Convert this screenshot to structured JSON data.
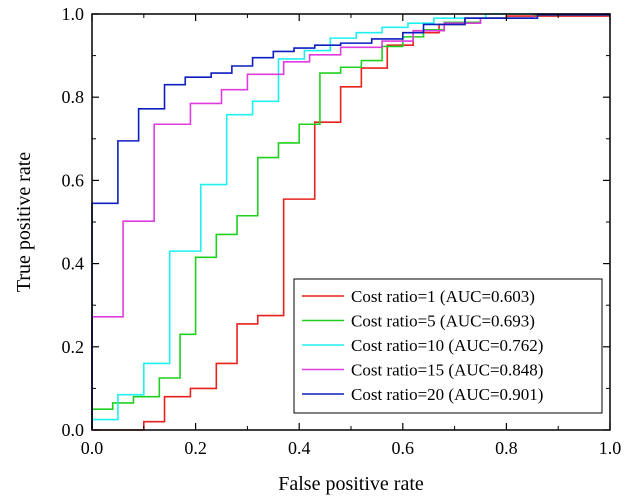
{
  "chart_data": {
    "type": "line",
    "xlabel": "False positive rate",
    "ylabel": "True positive rate",
    "xlim": [
      0.0,
      1.0
    ],
    "ylim": [
      0.0,
      1.0
    ],
    "x_ticks": [
      "0.0",
      "0.2",
      "0.4",
      "0.6",
      "0.8",
      "1.0"
    ],
    "y_ticks": [
      "0.0",
      "0.2",
      "0.4",
      "0.6",
      "0.8",
      "1.0"
    ],
    "grid": false,
    "legend_position": "bottom-right",
    "series": [
      {
        "name": "Cost ratio=1 (AUC=0.603)",
        "color": "#e8211c",
        "points": [
          [
            0,
            0
          ],
          [
            0.1,
            0
          ],
          [
            0.1,
            0.02
          ],
          [
            0.14,
            0.02
          ],
          [
            0.14,
            0.08
          ],
          [
            0.19,
            0.08
          ],
          [
            0.19,
            0.1
          ],
          [
            0.24,
            0.1
          ],
          [
            0.24,
            0.16
          ],
          [
            0.28,
            0.16
          ],
          [
            0.28,
            0.255
          ],
          [
            0.32,
            0.255
          ],
          [
            0.32,
            0.275
          ],
          [
            0.37,
            0.275
          ],
          [
            0.37,
            0.555
          ],
          [
            0.43,
            0.555
          ],
          [
            0.43,
            0.74
          ],
          [
            0.48,
            0.74
          ],
          [
            0.48,
            0.825
          ],
          [
            0.52,
            0.825
          ],
          [
            0.52,
            0.87
          ],
          [
            0.57,
            0.87
          ],
          [
            0.57,
            0.925
          ],
          [
            0.62,
            0.925
          ],
          [
            0.62,
            0.955
          ],
          [
            0.67,
            0.955
          ],
          [
            0.67,
            0.975
          ],
          [
            0.72,
            0.975
          ],
          [
            0.72,
            0.99
          ],
          [
            0.8,
            0.99
          ],
          [
            0.8,
            0.995
          ],
          [
            1.0,
            0.995
          ]
        ]
      },
      {
        "name": "Cost ratio=5 (AUC=0.693)",
        "color": "#20d020",
        "points": [
          [
            0,
            0
          ],
          [
            0,
            0.05
          ],
          [
            0.04,
            0.05
          ],
          [
            0.04,
            0.065
          ],
          [
            0.08,
            0.065
          ],
          [
            0.08,
            0.08
          ],
          [
            0.13,
            0.08
          ],
          [
            0.13,
            0.125
          ],
          [
            0.17,
            0.125
          ],
          [
            0.17,
            0.23
          ],
          [
            0.2,
            0.23
          ],
          [
            0.2,
            0.415
          ],
          [
            0.24,
            0.415
          ],
          [
            0.24,
            0.47
          ],
          [
            0.28,
            0.47
          ],
          [
            0.28,
            0.515
          ],
          [
            0.32,
            0.515
          ],
          [
            0.32,
            0.655
          ],
          [
            0.36,
            0.655
          ],
          [
            0.36,
            0.69
          ],
          [
            0.4,
            0.69
          ],
          [
            0.4,
            0.735
          ],
          [
            0.44,
            0.735
          ],
          [
            0.44,
            0.858
          ],
          [
            0.48,
            0.858
          ],
          [
            0.48,
            0.872
          ],
          [
            0.52,
            0.872
          ],
          [
            0.52,
            0.888
          ],
          [
            0.56,
            0.888
          ],
          [
            0.56,
            0.922
          ],
          [
            0.6,
            0.922
          ],
          [
            0.6,
            0.945
          ],
          [
            0.64,
            0.945
          ],
          [
            0.64,
            0.962
          ],
          [
            0.68,
            0.962
          ],
          [
            0.68,
            0.98
          ],
          [
            0.75,
            0.98
          ],
          [
            0.75,
            0.99
          ],
          [
            0.85,
            0.99
          ],
          [
            0.85,
            0.998
          ],
          [
            1.0,
            0.998
          ]
        ]
      },
      {
        "name": "Cost ratio=10 (AUC=0.762)",
        "color": "#1ff0f0",
        "points": [
          [
            0,
            0
          ],
          [
            0,
            0.025
          ],
          [
            0.05,
            0.025
          ],
          [
            0.05,
            0.085
          ],
          [
            0.1,
            0.085
          ],
          [
            0.1,
            0.16
          ],
          [
            0.15,
            0.16
          ],
          [
            0.15,
            0.43
          ],
          [
            0.21,
            0.43
          ],
          [
            0.21,
            0.59
          ],
          [
            0.26,
            0.59
          ],
          [
            0.26,
            0.758
          ],
          [
            0.31,
            0.758
          ],
          [
            0.31,
            0.79
          ],
          [
            0.36,
            0.79
          ],
          [
            0.36,
            0.892
          ],
          [
            0.41,
            0.892
          ],
          [
            0.41,
            0.912
          ],
          [
            0.46,
            0.912
          ],
          [
            0.46,
            0.942
          ],
          [
            0.51,
            0.942
          ],
          [
            0.51,
            0.955
          ],
          [
            0.56,
            0.955
          ],
          [
            0.56,
            0.968
          ],
          [
            0.61,
            0.968
          ],
          [
            0.61,
            0.978
          ],
          [
            0.66,
            0.978
          ],
          [
            0.66,
            0.99
          ],
          [
            0.76,
            0.99
          ],
          [
            0.76,
            1.0
          ],
          [
            1.0,
            1.0
          ]
        ]
      },
      {
        "name": "Cost ratio=15 (AUC=0.848)",
        "color": "#df3cdf",
        "points": [
          [
            0,
            0
          ],
          [
            0,
            0.272
          ],
          [
            0.06,
            0.272
          ],
          [
            0.06,
            0.502
          ],
          [
            0.12,
            0.502
          ],
          [
            0.12,
            0.735
          ],
          [
            0.19,
            0.735
          ],
          [
            0.19,
            0.785
          ],
          [
            0.25,
            0.785
          ],
          [
            0.25,
            0.818
          ],
          [
            0.3,
            0.818
          ],
          [
            0.3,
            0.855
          ],
          [
            0.37,
            0.855
          ],
          [
            0.37,
            0.885
          ],
          [
            0.42,
            0.885
          ],
          [
            0.42,
            0.902
          ],
          [
            0.48,
            0.902
          ],
          [
            0.48,
            0.92
          ],
          [
            0.56,
            0.92
          ],
          [
            0.56,
            0.935
          ],
          [
            0.62,
            0.935
          ],
          [
            0.62,
            0.96
          ],
          [
            0.68,
            0.96
          ],
          [
            0.68,
            0.978
          ],
          [
            0.75,
            0.978
          ],
          [
            0.75,
            0.99
          ],
          [
            0.85,
            0.99
          ],
          [
            0.85,
            1.0
          ],
          [
            1.0,
            1.0
          ]
        ]
      },
      {
        "name": "Cost ratio=20 (AUC=0.901)",
        "color": "#0d1fbf",
        "points": [
          [
            0,
            0
          ],
          [
            0,
            0.545
          ],
          [
            0.05,
            0.545
          ],
          [
            0.05,
            0.695
          ],
          [
            0.09,
            0.695
          ],
          [
            0.09,
            0.772
          ],
          [
            0.14,
            0.772
          ],
          [
            0.14,
            0.83
          ],
          [
            0.18,
            0.83
          ],
          [
            0.18,
            0.848
          ],
          [
            0.23,
            0.848
          ],
          [
            0.23,
            0.858
          ],
          [
            0.27,
            0.858
          ],
          [
            0.27,
            0.875
          ],
          [
            0.31,
            0.875
          ],
          [
            0.31,
            0.895
          ],
          [
            0.35,
            0.895
          ],
          [
            0.35,
            0.91
          ],
          [
            0.39,
            0.91
          ],
          [
            0.39,
            0.918
          ],
          [
            0.43,
            0.918
          ],
          [
            0.43,
            0.925
          ],
          [
            0.48,
            0.925
          ],
          [
            0.48,
            0.93
          ],
          [
            0.54,
            0.93
          ],
          [
            0.54,
            0.94
          ],
          [
            0.6,
            0.94
          ],
          [
            0.6,
            0.955
          ],
          [
            0.64,
            0.955
          ],
          [
            0.64,
            0.975
          ],
          [
            0.72,
            0.975
          ],
          [
            0.72,
            0.99
          ],
          [
            0.86,
            0.99
          ],
          [
            0.86,
            0.998
          ],
          [
            1.0,
            0.998
          ]
        ]
      }
    ]
  }
}
